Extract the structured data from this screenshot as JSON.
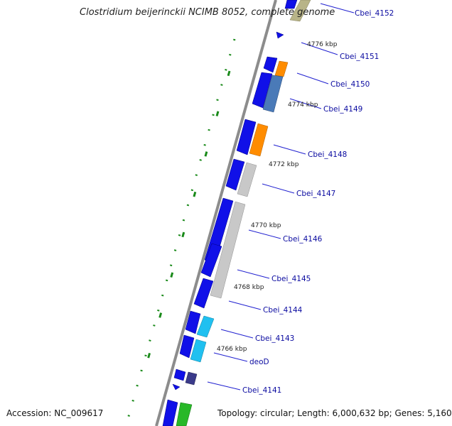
{
  "title": "Clostridium beijerinckii NCIMB 8052, complete genome",
  "footer": {
    "accession": "Accession: NC_009617",
    "summary": "Topology: circular; Length: 6,000,632 bp; Genes: 5,160"
  },
  "colors": {
    "backbone": "#8c8c8c",
    "forward_strand": "#1010e8",
    "tick": "#1a8a1a",
    "label_line": "#2020d0",
    "label_text": "#0a0aa0",
    "orange_feature": "#ff8c00",
    "steelblue_feature": "#4a7ab8",
    "gray_feature": "#c8c8c8",
    "cyan_feature": "#20c0f0",
    "olive_feature": "#b8b488",
    "purple_feature": "#3a3a8a",
    "green_feature": "#28b828"
  },
  "kbp_markers": [
    "4776 kbp",
    "4774 kbp",
    "4772 kbp",
    "4770 kbp",
    "4768 kbp",
    "4766 kbp"
  ],
  "gene_labels": [
    "Cbei_4152",
    "Cbei_4151",
    "Cbei_4150",
    "Cbei_4149",
    "Cbei_4148",
    "Cbei_4147",
    "Cbei_4146",
    "Cbei_4145",
    "Cbei_4144",
    "Cbei_4143",
    "deoD",
    "Cbei_4141"
  ]
}
